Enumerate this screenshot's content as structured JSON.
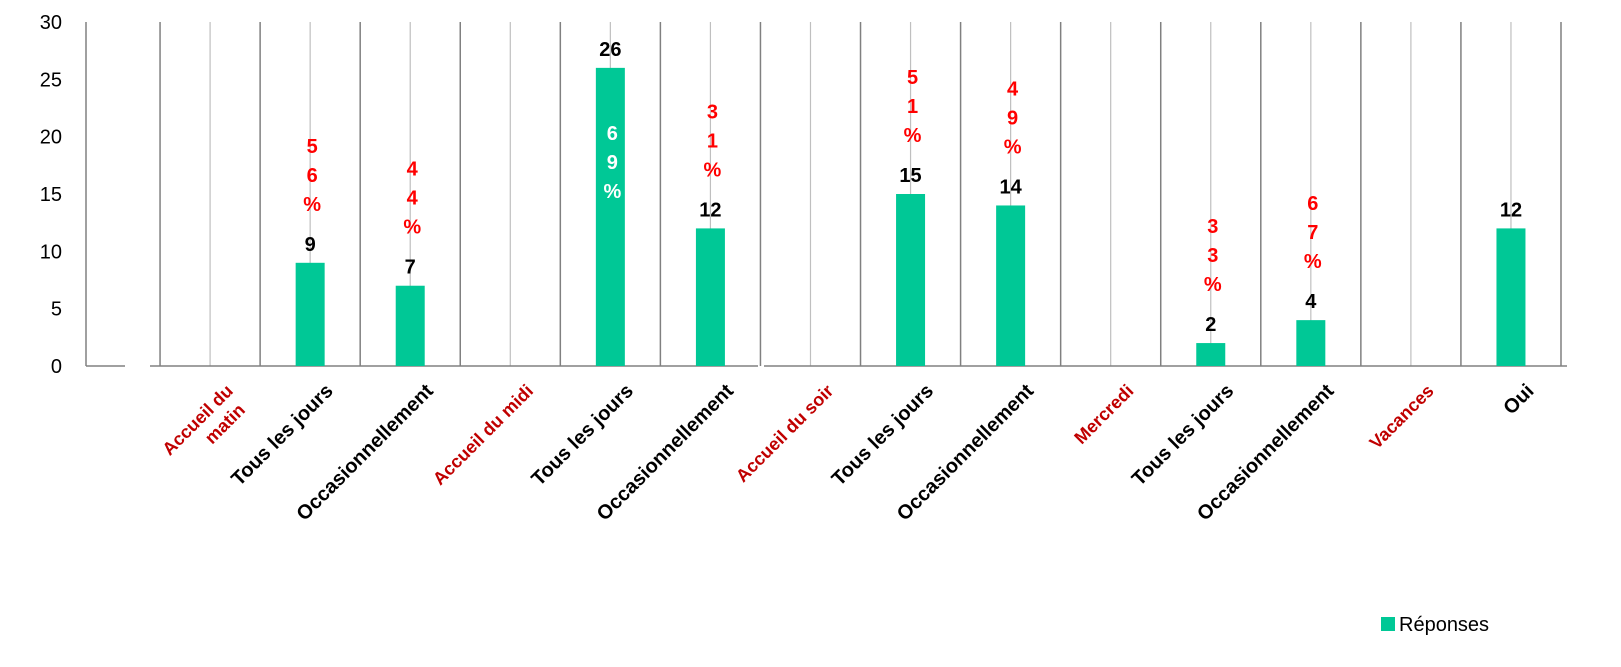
{
  "chart_data": {
    "type": "bar",
    "categories": [
      "Accueil du matin",
      "Tous les jours",
      "Occasionnellement",
      "Accueil du midi",
      "Tous les jours",
      "Occasionnellement",
      "Accueil du soir",
      "Tous les jours",
      "Occasionnellement",
      "Mercredi",
      "Tous les jours",
      "Occasionnellement",
      "Vacances",
      "Oui"
    ],
    "group_headers": [
      "Accueil du matin",
      "Accueil du midi",
      "Accueil du soir",
      "Mercredi",
      "Vacances"
    ],
    "series": [
      {
        "name": "Réponses",
        "values": [
          null,
          9,
          7,
          null,
          26,
          12,
          null,
          15,
          14,
          null,
          2,
          4,
          null,
          12
        ]
      }
    ],
    "value_labels": [
      "",
      "9",
      "7",
      "",
      "26",
      "12",
      "",
      "15",
      "14",
      "",
      "2",
      "4",
      "",
      "12"
    ],
    "percent_labels": [
      "",
      "56%",
      "44%",
      "",
      "69%",
      "31%",
      "",
      "51%",
      "49%",
      "",
      "33%",
      "67%",
      "",
      ""
    ],
    "yticks": [
      "0",
      "5",
      "10",
      "15",
      "20",
      "25",
      "30"
    ],
    "ylim": [
      0,
      30
    ],
    "xlabel": "",
    "ylabel": "",
    "grid": "vertical",
    "legend": "bottom-right",
    "colors": {
      "bar": "#00c896",
      "group_label": "#c00000",
      "percent": "#ff0000",
      "percent_inside": "#ffffff",
      "gridline": "#a6a6a6",
      "axis": "#808080"
    }
  }
}
